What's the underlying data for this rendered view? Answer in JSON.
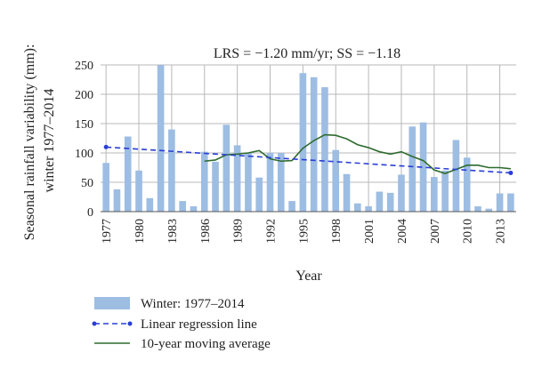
{
  "chart_data": {
    "type": "bar",
    "title": "LRS = −1.20 mm/yr; SS = −1.18",
    "xlabel": "Year",
    "ylabel_lines": [
      "Seasonal rainfall variability (mm):",
      "winter 1977–2014"
    ],
    "ylim": [
      0,
      250
    ],
    "yticks": [
      0,
      50,
      100,
      150,
      200,
      250
    ],
    "xtick_years": [
      1977,
      1980,
      1983,
      1986,
      1989,
      1992,
      1995,
      1998,
      2001,
      2004,
      2007,
      2010,
      2013
    ],
    "grid": true,
    "years": [
      1977,
      1978,
      1979,
      1980,
      1981,
      1982,
      1983,
      1984,
      1985,
      1986,
      1987,
      1988,
      1989,
      1990,
      1991,
      1992,
      1993,
      1994,
      1995,
      1996,
      1997,
      1998,
      1999,
      2000,
      2001,
      2002,
      2003,
      2004,
      2005,
      2006,
      2007,
      2008,
      2009,
      2010,
      2011,
      2012,
      2013,
      2014
    ],
    "series": [
      {
        "name": "Winter: 1977–2014",
        "kind": "bar",
        "color": "#9dbde3",
        "values": [
          83,
          38,
          128,
          70,
          23,
          250,
          140,
          18,
          9,
          102,
          85,
          148,
          113,
          100,
          58,
          100,
          100,
          18,
          236,
          229,
          212,
          105,
          64,
          14,
          9,
          34,
          32,
          63,
          145,
          152,
          59,
          70,
          122,
          92,
          9,
          5,
          31,
          31
        ]
      },
      {
        "name": "Linear regression line",
        "kind": "regression",
        "color": "#2a3fd6",
        "start": [
          1977,
          110
        ],
        "end": [
          2014,
          66
        ]
      },
      {
        "name": "10-year moving average",
        "kind": "line",
        "color": "#2e6b2e",
        "x": [
          1986,
          1987,
          1988,
          1989,
          1990,
          1991,
          1992,
          1993,
          1994,
          1995,
          1996,
          1997,
          1998,
          1999,
          2000,
          2001,
          2002,
          2003,
          2004,
          2005,
          2006,
          2007,
          2008,
          2009,
          2010,
          2011,
          2012,
          2013,
          2014
        ],
        "values": [
          86,
          88,
          97,
          98,
          100,
          104,
          90,
          86,
          87,
          108,
          121,
          131,
          130,
          124,
          114,
          109,
          102,
          98,
          102,
          94,
          87,
          71,
          65,
          72,
          79,
          79,
          75,
          75,
          73
        ]
      }
    ],
    "legend_placement": "bottom-left"
  }
}
